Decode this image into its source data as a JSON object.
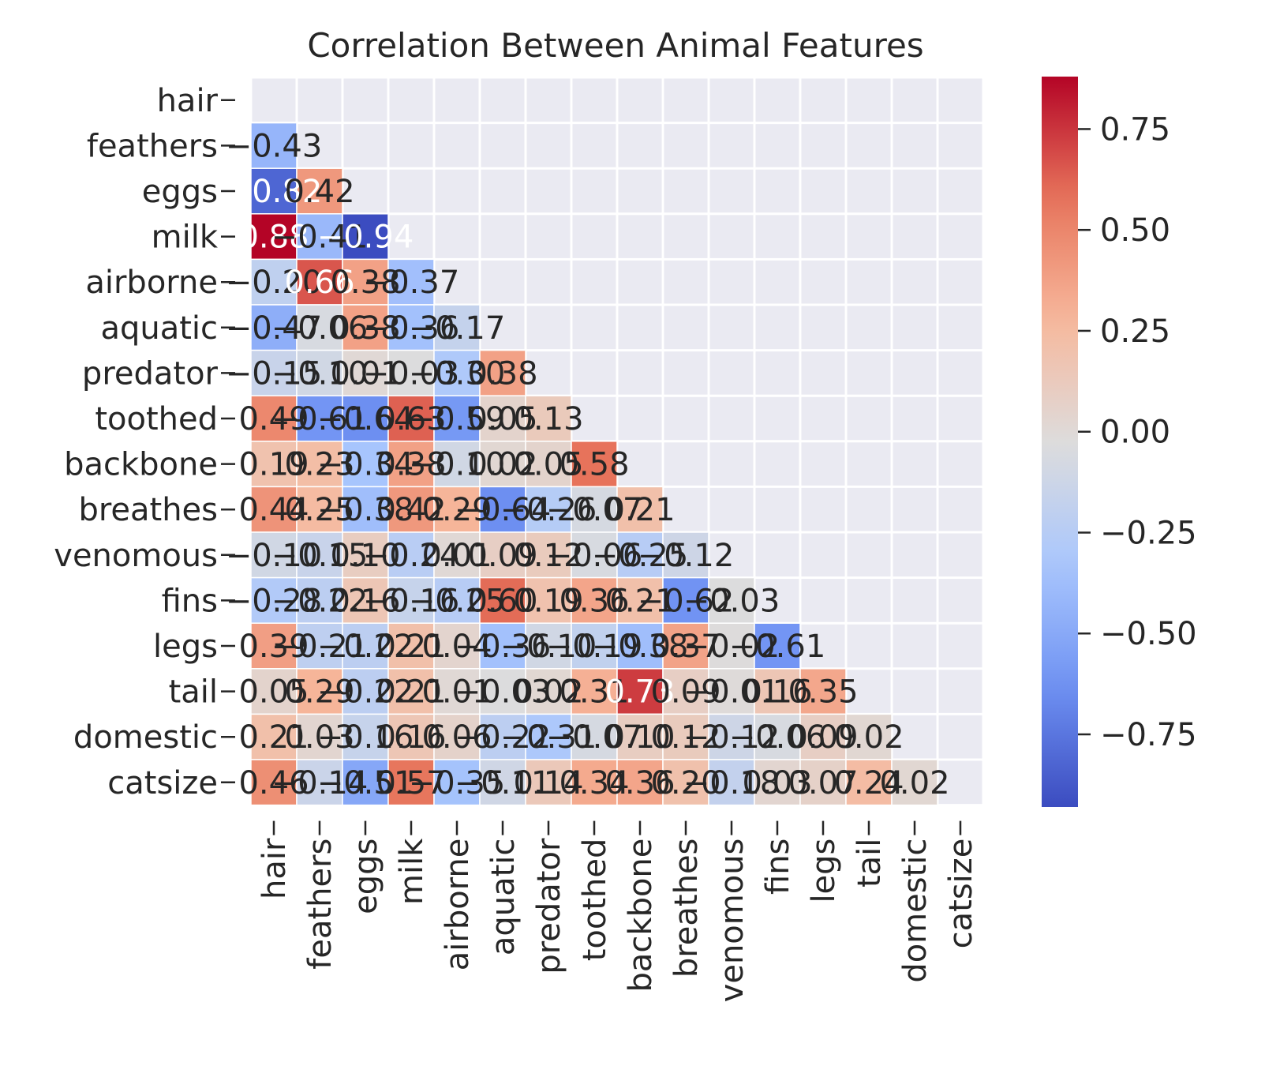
{
  "chart_data": {
    "type": "heatmap",
    "title": "Correlation Between Animal Features",
    "xlabel": "",
    "ylabel": "",
    "mask": "upper-triangle-including-diagonal",
    "annotation_format": "2 decimals",
    "colormap": "coolwarm",
    "colormap_stops": [
      "#3b4cc0",
      "#6f92f3",
      "#aac7fd",
      "#dddcdc",
      "#f7b89c",
      "#e7745b",
      "#b40426"
    ],
    "grid_background": "#eaeaf2",
    "vmin": -0.93,
    "vmax": 0.88,
    "colorbar_ticks": [
      0.75,
      0.5,
      0.25,
      0.0,
      -0.25,
      -0.5,
      -0.75
    ],
    "colorbar_tick_labels": [
      "0.75",
      "0.50",
      "0.25",
      "0.00",
      "−0.25",
      "−0.50",
      "−0.75"
    ],
    "labels": [
      "hair",
      "feathers",
      "eggs",
      "milk",
      "airborne",
      "aquatic",
      "predator",
      "toothed",
      "backbone",
      "breathes",
      "venomous",
      "fins",
      "legs",
      "tail",
      "domestic",
      "catsize"
    ],
    "matrix": [
      [],
      [
        -0.43
      ],
      [
        -0.82,
        0.42
      ],
      [
        0.88,
        -0.41,
        -0.94
      ],
      [
        -0.2,
        0.66,
        0.38,
        -0.37
      ],
      [
        -0.47,
        -0.06,
        0.38,
        -0.36,
        -0.17
      ],
      [
        -0.15,
        -0.1,
        0.01,
        -0.03,
        -0.3,
        0.38
      ],
      [
        0.49,
        -0.61,
        -0.64,
        0.63,
        -0.59,
        0.05,
        0.13
      ],
      [
        0.19,
        0.23,
        -0.34,
        0.38,
        -0.1,
        0.02,
        0.05,
        0.58
      ],
      [
        0.44,
        0.25,
        -0.38,
        0.42,
        0.29,
        -0.64,
        -0.26,
        -0.07,
        0.21
      ],
      [
        -0.1,
        -0.15,
        0.1,
        -0.24,
        0.01,
        0.09,
        0.12,
        -0.06,
        -0.25,
        -0.12
      ],
      [
        -0.28,
        -0.22,
        0.16,
        -0.16,
        -0.25,
        0.6,
        0.19,
        0.36,
        0.21,
        -0.62,
        -0.03
      ],
      [
        0.39,
        -0.21,
        -0.22,
        0.21,
        0.04,
        -0.36,
        -0.1,
        -0.19,
        -0.38,
        0.37,
        -0.02,
        -0.61
      ],
      [
        0.05,
        0.29,
        -0.22,
        0.21,
        0.01,
        -0.03,
        0.02,
        0.31,
        0.73,
        0.09,
        -0.01,
        0.16,
        0.35
      ],
      [
        0.21,
        0.03,
        -0.16,
        0.16,
        0.06,
        -0.22,
        -0.31,
        -0.07,
        0.1,
        0.12,
        -0.12,
        -0.06,
        0.09,
        0.02
      ],
      [
        0.46,
        -0.14,
        -0.51,
        0.57,
        -0.35,
        -0.11,
        0.14,
        0.34,
        0.36,
        0.2,
        -0.18,
        0.03,
        0.07,
        0.24,
        0.02
      ]
    ]
  }
}
